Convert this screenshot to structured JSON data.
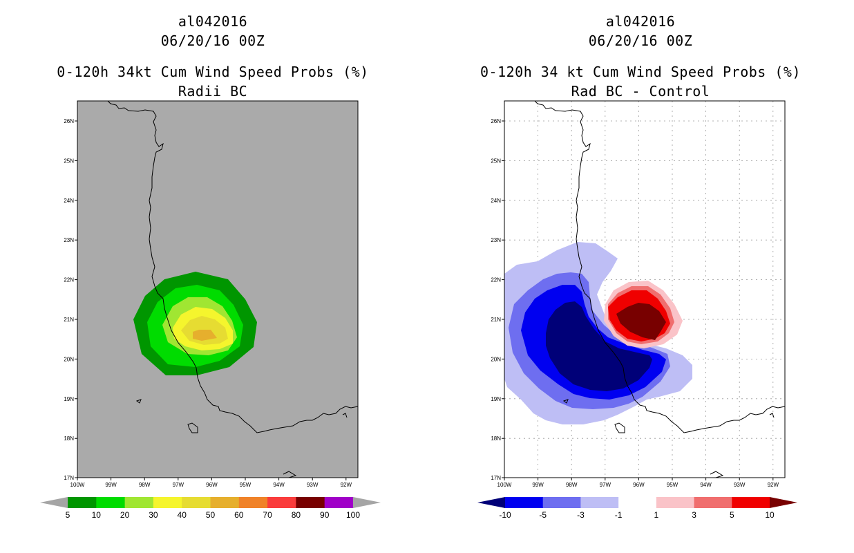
{
  "left_panel": {
    "storm_id": "al042016",
    "datetime": "06/20/16 00Z",
    "title": "0-120h 34kt Cum Wind Speed Probs (%)",
    "subtitle": "Radii BC",
    "background_color": "#aaaaaa",
    "lat_labels": [
      "26N",
      "25N",
      "24N",
      "23N",
      "22N",
      "21N",
      "20N",
      "19N",
      "18N",
      "17N"
    ],
    "lon_labels": [
      "100W",
      "99W",
      "98W",
      "97W",
      "96W",
      "95W",
      "94W",
      "93W",
      "92W"
    ],
    "colorbar": {
      "labels": [
        "5",
        "10",
        "20",
        "30",
        "40",
        "50",
        "60",
        "70",
        "80",
        "90",
        "100"
      ],
      "colors": [
        "#a5a5a5",
        "#009600",
        "#00dc00",
        "#a0e632",
        "#f5f52d",
        "#e6dc32",
        "#e6af2d",
        "#f08228",
        "#fa3c3c",
        "#780000",
        "#a000c8",
        "#a5a5a5"
      ]
    }
  },
  "right_panel": {
    "storm_id": "al042016",
    "datetime": "06/20/16 00Z",
    "title": "0-120h 34 kt Cum Wind Speed Probs (%)",
    "subtitle": "Rad BC - Control",
    "background_color": "#ffffff",
    "lat_labels": [
      "26N",
      "25N",
      "24N",
      "23N",
      "22N",
      "21N",
      "20N",
      "19N",
      "18N",
      "17N"
    ],
    "lon_labels": [
      "100W",
      "99W",
      "98W",
      "97W",
      "96W",
      "95W",
      "94W",
      "93W",
      "92W"
    ],
    "colorbar": {
      "labels": [
        "-10",
        "-5",
        "-3",
        "-1",
        "1",
        "3",
        "5",
        "10"
      ],
      "colors": [
        "#000078",
        "#0000f0",
        "#6e6ef0",
        "#bebef5",
        "#ffffff",
        "#fac3c8",
        "#f06e6e",
        "#f00000",
        "#780000"
      ]
    }
  }
}
